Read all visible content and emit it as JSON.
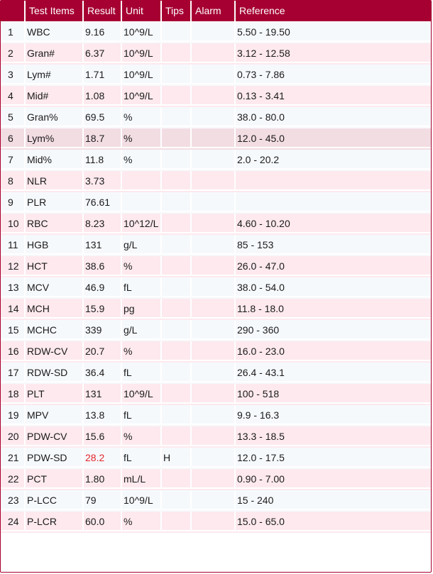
{
  "columns": {
    "no": "",
    "item": "Test Items",
    "result": "Result",
    "unit": "Unit",
    "tips": "Tips",
    "alarm": "Alarm",
    "reference": "Reference"
  },
  "colors": {
    "header_bg": "#a60032",
    "high_flag": "#e3262b",
    "row_alt": "#fde9ee",
    "row_base": "#f6f9fc"
  },
  "selected_row": 6,
  "rows": [
    {
      "no": "1",
      "item": "WBC",
      "result": "9.16",
      "unit": "10^9/L",
      "tips": "",
      "alarm": "",
      "reference": "5.50 - 19.50"
    },
    {
      "no": "2",
      "item": "Gran#",
      "result": "6.37",
      "unit": "10^9/L",
      "tips": "",
      "alarm": "",
      "reference": "3.12 - 12.58"
    },
    {
      "no": "3",
      "item": "Lym#",
      "result": "1.71",
      "unit": "10^9/L",
      "tips": "",
      "alarm": "",
      "reference": "0.73 - 7.86"
    },
    {
      "no": "4",
      "item": "Mid#",
      "result": "1.08",
      "unit": "10^9/L",
      "tips": "",
      "alarm": "",
      "reference": "0.13 - 3.41"
    },
    {
      "no": "5",
      "item": "Gran%",
      "result": "69.5",
      "unit": "%",
      "tips": "",
      "alarm": "",
      "reference": "38.0 - 80.0"
    },
    {
      "no": "6",
      "item": "Lym%",
      "result": "18.7",
      "unit": "%",
      "tips": "",
      "alarm": "",
      "reference": "12.0 - 45.0"
    },
    {
      "no": "7",
      "item": "Mid%",
      "result": "11.8",
      "unit": "%",
      "tips": "",
      "alarm": "",
      "reference": "2.0 - 20.2"
    },
    {
      "no": "8",
      "item": "NLR",
      "result": "3.73",
      "unit": "",
      "tips": "",
      "alarm": "",
      "reference": ""
    },
    {
      "no": "9",
      "item": "PLR",
      "result": "76.61",
      "unit": "",
      "tips": "",
      "alarm": "",
      "reference": ""
    },
    {
      "no": "10",
      "item": "RBC",
      "result": "8.23",
      "unit": "10^12/L",
      "tips": "",
      "alarm": "",
      "reference": "4.60 - 10.20"
    },
    {
      "no": "11",
      "item": "HGB",
      "result": "131",
      "unit": "g/L",
      "tips": "",
      "alarm": "",
      "reference": "85 - 153"
    },
    {
      "no": "12",
      "item": "HCT",
      "result": "38.6",
      "unit": "%",
      "tips": "",
      "alarm": "",
      "reference": "26.0 - 47.0"
    },
    {
      "no": "13",
      "item": "MCV",
      "result": "46.9",
      "unit": "fL",
      "tips": "",
      "alarm": "",
      "reference": "38.0 - 54.0"
    },
    {
      "no": "14",
      "item": "MCH",
      "result": "15.9",
      "unit": "pg",
      "tips": "",
      "alarm": "",
      "reference": "11.8 - 18.0"
    },
    {
      "no": "15",
      "item": "MCHC",
      "result": "339",
      "unit": "g/L",
      "tips": "",
      "alarm": "",
      "reference": "290 - 360"
    },
    {
      "no": "16",
      "item": "RDW-CV",
      "result": "20.7",
      "unit": "%",
      "tips": "",
      "alarm": "",
      "reference": "16.0 - 23.0"
    },
    {
      "no": "17",
      "item": "RDW-SD",
      "result": "36.4",
      "unit": "fL",
      "tips": "",
      "alarm": "",
      "reference": "26.4 - 43.1"
    },
    {
      "no": "18",
      "item": "PLT",
      "result": "131",
      "unit": "10^9/L",
      "tips": "",
      "alarm": "",
      "reference": "100 - 518"
    },
    {
      "no": "19",
      "item": "MPV",
      "result": "13.8",
      "unit": "fL",
      "tips": "",
      "alarm": "",
      "reference": "9.9 - 16.3"
    },
    {
      "no": "20",
      "item": "PDW-CV",
      "result": "15.6",
      "unit": "%",
      "tips": "",
      "alarm": "",
      "reference": "13.3 - 18.5"
    },
    {
      "no": "21",
      "item": "PDW-SD",
      "result": "28.2",
      "unit": "fL",
      "tips": "H",
      "alarm": "",
      "reference": "12.0 - 17.5",
      "high": true
    },
    {
      "no": "22",
      "item": "PCT",
      "result": "1.80",
      "unit": "mL/L",
      "tips": "",
      "alarm": "",
      "reference": "0.90 - 7.00"
    },
    {
      "no": "23",
      "item": "P-LCC",
      "result": "79",
      "unit": "10^9/L",
      "tips": "",
      "alarm": "",
      "reference": "15 - 240"
    },
    {
      "no": "24",
      "item": "P-LCR",
      "result": "60.0",
      "unit": "%",
      "tips": "",
      "alarm": "",
      "reference": "15.0 - 65.0"
    }
  ]
}
